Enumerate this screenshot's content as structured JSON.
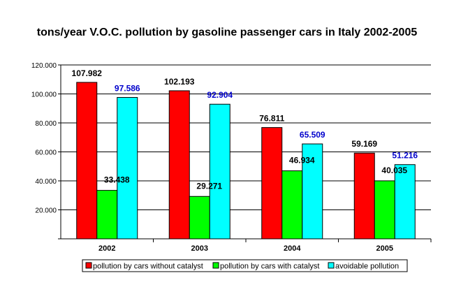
{
  "chart_data": {
    "type": "bar",
    "title": "tons/year V.O.C. pollution by gasoline passenger cars in Italy 2002-2005",
    "categories": [
      "2002",
      "2003",
      "2004",
      "2005"
    ],
    "ylim": [
      0,
      120000
    ],
    "ytick_values": [
      20000,
      40000,
      60000,
      80000,
      100000,
      120000
    ],
    "ytick_labels": [
      "20.000",
      "40.000",
      "60.000",
      "80.000",
      "100.000",
      "120.000"
    ],
    "grid": true,
    "legend_position": "bottom",
    "series": [
      {
        "name": "pollution by cars without catalyst",
        "color": "#ff0000",
        "label_color": "#000000",
        "values": [
          107982,
          102193,
          76811,
          59169
        ],
        "labels": [
          "107.982",
          "102.193",
          "76.811",
          "59.169"
        ]
      },
      {
        "name": "pollution by cars with catalyst",
        "color": "#00ff00",
        "label_color": "#000000",
        "values": [
          33438,
          29271,
          46934,
          40035
        ],
        "labels": [
          "33.438",
          "29.271",
          "46.934",
          "40.035"
        ]
      },
      {
        "name": "avoidable pollution",
        "color": "#00ffff",
        "label_color": "#0000cc",
        "values": [
          97586,
          92904,
          65509,
          51216
        ],
        "labels": [
          "97.586",
          "92.904",
          "65.509",
          "51.216"
        ]
      }
    ]
  }
}
